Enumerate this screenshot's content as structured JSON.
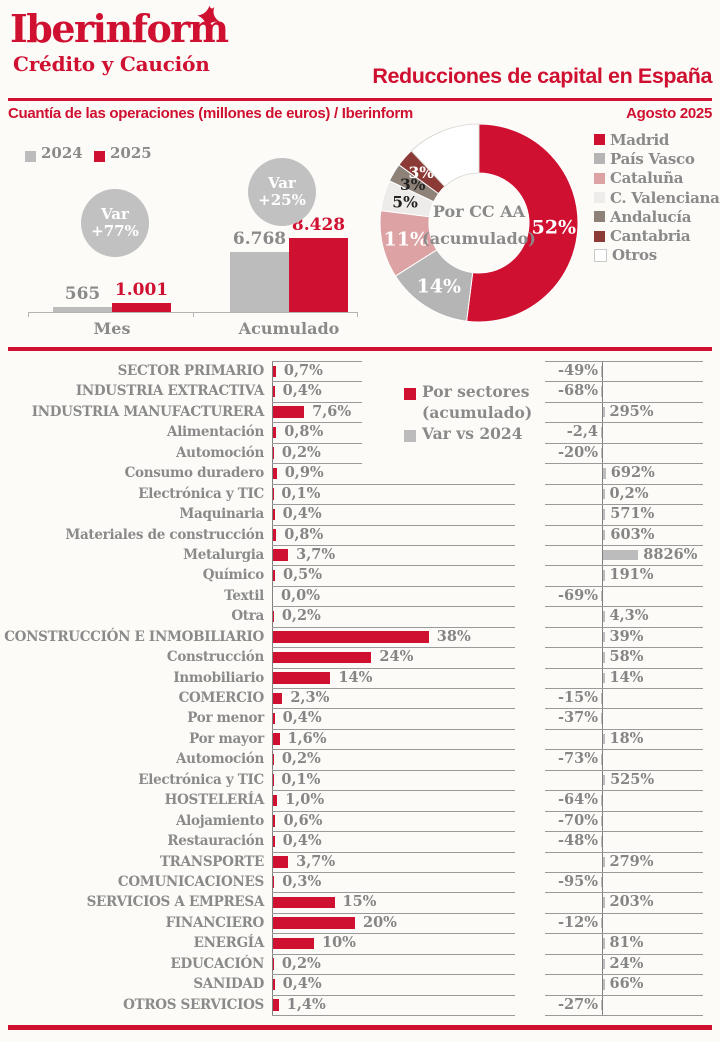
{
  "header": {
    "logo_title": "Iberinform",
    "logo_subtitle": "Crédito y Caución",
    "logo_mark": "bird-icon",
    "page_title": "Reducciones de capital en España",
    "subtitle_left": "Cuantía de las operaciones (millones de euros) / Iberinform",
    "subtitle_right": "Agosto 2025"
  },
  "colors": {
    "brand_red": "#cf1030",
    "silver": "#bcbcbc",
    "circle_gray": "#c1c1c1",
    "text_gray": "#8a8a8a",
    "value_gray": "#858585",
    "line_gray": "#9a9a9a",
    "axis_gray": "#808080",
    "background": "#fcfbf8",
    "white": "#ffffff"
  },
  "chart_data": [
    {
      "type": "bar",
      "name": "operations-by-period",
      "categories": [
        "Mes",
        "Acumulado"
      ],
      "series": [
        {
          "name": "2024",
          "color": "#bcbcbc",
          "values": [
            565,
            6768
          ],
          "value_labels": [
            "565",
            "6.768"
          ]
        },
        {
          "name": "2025",
          "color": "#cf1030",
          "values": [
            1001,
            8428
          ],
          "value_labels": [
            "1.001",
            "8.428"
          ]
        }
      ],
      "annotations": [
        {
          "lines": [
            "Var",
            "+77%"
          ],
          "category": "Mes"
        },
        {
          "lines": [
            "Var",
            "+25%"
          ],
          "category": "Acumulado"
        }
      ],
      "ylim": [
        0,
        8428
      ],
      "grid": false,
      "legend_position": "top-left"
    },
    {
      "type": "pie",
      "name": "regions-donut",
      "title": "Por CC AA (acumulado)",
      "center_lines": [
        "Por CC AA",
        "(acumulado)"
      ],
      "slices": [
        {
          "label": "Madrid",
          "value": 52,
          "display": "52%",
          "color": "#cf1030",
          "label_color": "#ffffff"
        },
        {
          "label": "País Vasco",
          "value": 14,
          "display": "14%",
          "color": "#b5b5b5",
          "label_color": "#ffffff"
        },
        {
          "label": "Cataluña",
          "value": 11,
          "display": "11%",
          "color": "#dda3a4",
          "label_color": "#ffffff"
        },
        {
          "label": "C. Valenciana",
          "value": 5,
          "display": "5%",
          "color": "#edecea",
          "label_color": "#222222"
        },
        {
          "label": "Andalucía",
          "value": 3,
          "display": "3%",
          "color": "#8d8178",
          "label_color": "#222222"
        },
        {
          "label": "Cantabria",
          "value": 3,
          "display": "3%",
          "color": "#8c3a36",
          "label_color": "#ffffff"
        },
        {
          "label": "Otros",
          "value": 12,
          "display": "",
          "color": "#ffffff",
          "label_color": "#222222"
        }
      ],
      "legend_position": "right"
    },
    {
      "type": "bar",
      "name": "sectors-table",
      "legend": {
        "series1_lines": [
          "Por sectores",
          "(acumulado)"
        ],
        "series1_color": "#cf1030",
        "series2": "Var vs 2024",
        "series2_color": "#bcbcbc"
      },
      "rows": [
        {
          "label": "SECTOR PRIMARIO",
          "main": true,
          "pct": 0.7,
          "pct_label": "0,7%",
          "var": -49,
          "var_label": "-49%"
        },
        {
          "label": "INDUSTRIA EXTRACTIVA",
          "main": true,
          "pct": 0.4,
          "pct_label": "0,4%",
          "var": -68,
          "var_label": "-68%"
        },
        {
          "label": "INDUSTRIA MANUFACTURERA",
          "main": true,
          "pct": 7.6,
          "pct_label": "7,6%",
          "var": 295,
          "var_label": "295%"
        },
        {
          "label": "Alimentación",
          "main": false,
          "pct": 0.8,
          "pct_label": "0,8%",
          "var": -2.4,
          "var_label": "-2,4"
        },
        {
          "label": "Automoción",
          "main": false,
          "pct": 0.2,
          "pct_label": "0,2%",
          "var": -20,
          "var_label": "-20%"
        },
        {
          "label": "Consumo duradero",
          "main": false,
          "pct": 0.9,
          "pct_label": "0,9%",
          "var": 692,
          "var_label": "692%"
        },
        {
          "label": "Electrónica y TIC",
          "main": false,
          "pct": 0.1,
          "pct_label": "0,1%",
          "var": 0.2,
          "var_label": "0,2%"
        },
        {
          "label": "Maquinaria",
          "main": false,
          "pct": 0.4,
          "pct_label": "0,4%",
          "var": 571,
          "var_label": "571%"
        },
        {
          "label": "Materiales de construcción",
          "main": false,
          "pct": 0.8,
          "pct_label": "0,8%",
          "var": 603,
          "var_label": "603%"
        },
        {
          "label": "Metalurgia",
          "main": false,
          "pct": 3.7,
          "pct_label": "3,7%",
          "var": 8826,
          "var_label": "8826%"
        },
        {
          "label": "Químico",
          "main": false,
          "pct": 0.5,
          "pct_label": "0,5%",
          "var": 191,
          "var_label": "191%"
        },
        {
          "label": "Textil",
          "main": false,
          "pct": 0.0,
          "pct_label": "0,0%",
          "var": -69,
          "var_label": "-69%"
        },
        {
          "label": "Otra",
          "main": false,
          "pct": 0.2,
          "pct_label": "0,2%",
          "var": 4.3,
          "var_label": "4,3%"
        },
        {
          "label": "CONSTRUCCIÓN E INMOBILIARIO",
          "main": true,
          "pct": 38,
          "pct_label": "38%",
          "var": 39,
          "var_label": "39%"
        },
        {
          "label": "Construcción",
          "main": false,
          "pct": 24,
          "pct_label": "24%",
          "var": 58,
          "var_label": "58%"
        },
        {
          "label": "Inmobiliario",
          "main": false,
          "pct": 14,
          "pct_label": "14%",
          "var": 14,
          "var_label": "14%"
        },
        {
          "label": "COMERCIO",
          "main": true,
          "pct": 2.3,
          "pct_label": "2,3%",
          "var": -15,
          "var_label": "-15%"
        },
        {
          "label": "Por menor",
          "main": false,
          "pct": 0.4,
          "pct_label": "0,4%",
          "var": -37,
          "var_label": "-37%"
        },
        {
          "label": "Por mayor",
          "main": false,
          "pct": 1.6,
          "pct_label": "1,6%",
          "var": 18,
          "var_label": "18%"
        },
        {
          "label": "Automoción",
          "main": false,
          "pct": 0.2,
          "pct_label": "0,2%",
          "var": -73,
          "var_label": "-73%"
        },
        {
          "label": "Electrónica y TIC",
          "main": false,
          "pct": 0.1,
          "pct_label": "0,1%",
          "var": 525,
          "var_label": "525%"
        },
        {
          "label": "HOSTELERÍA",
          "main": true,
          "pct": 1.0,
          "pct_label": "1,0%",
          "var": -64,
          "var_label": "-64%"
        },
        {
          "label": "Alojamiento",
          "main": false,
          "pct": 0.6,
          "pct_label": "0,6%",
          "var": -70,
          "var_label": "-70%"
        },
        {
          "label": "Restauración",
          "main": false,
          "pct": 0.4,
          "pct_label": "0,4%",
          "var": -48,
          "var_label": "-48%"
        },
        {
          "label": "TRANSPORTE",
          "main": true,
          "pct": 3.7,
          "pct_label": "3,7%",
          "var": 279,
          "var_label": "279%"
        },
        {
          "label": "COMUNICACIONES",
          "main": true,
          "pct": 0.3,
          "pct_label": "0,3%",
          "var": -95,
          "var_label": "-95%"
        },
        {
          "label": "SERVICIOS A EMPRESA",
          "main": true,
          "pct": 15,
          "pct_label": "15%",
          "var": 203,
          "var_label": "203%"
        },
        {
          "label": "FINANCIERO",
          "main": true,
          "pct": 20,
          "pct_label": "20%",
          "var": -12,
          "var_label": "-12%"
        },
        {
          "label": "ENERGÍA",
          "main": true,
          "pct": 10,
          "pct_label": "10%",
          "var": 81,
          "var_label": "81%"
        },
        {
          "label": "EDUCACIÓN",
          "main": true,
          "pct": 0.2,
          "pct_label": "0,2%",
          "var": 24,
          "var_label": "24%"
        },
        {
          "label": "SANIDAD",
          "main": true,
          "pct": 0.4,
          "pct_label": "0,4%",
          "var": 66,
          "var_label": "66%"
        },
        {
          "label": "OTROS SERVICIOS",
          "main": true,
          "pct": 1.4,
          "pct_label": "1,4%",
          "var": -27,
          "var_label": "-27%"
        }
      ]
    }
  ]
}
